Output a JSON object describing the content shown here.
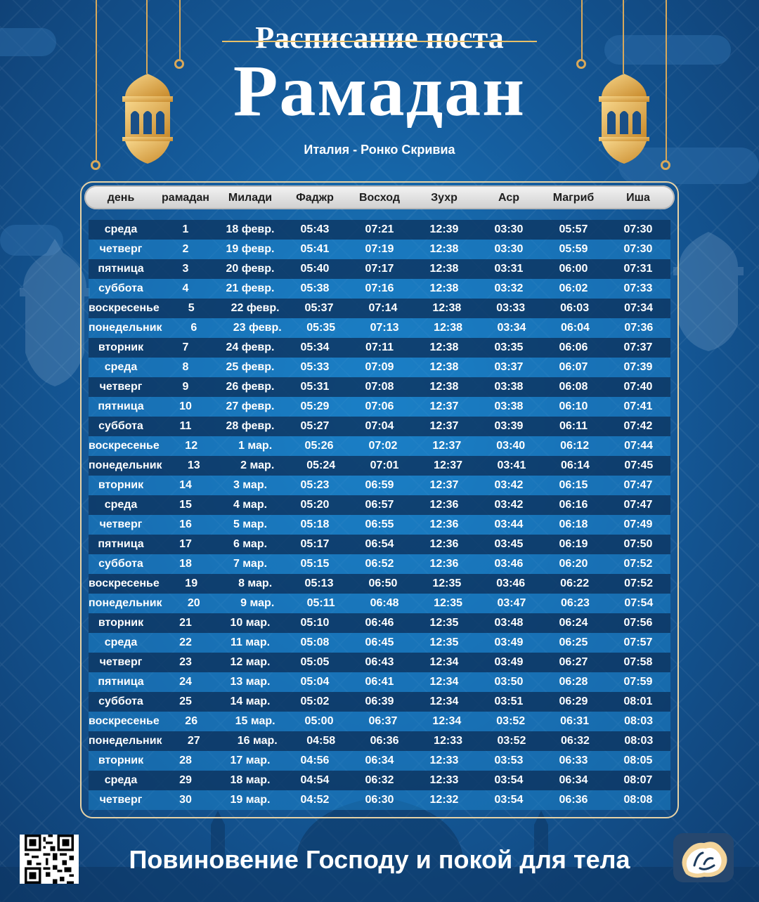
{
  "title_top": "Расписание поста",
  "title_main": "Рамадан",
  "location": "Италия - Ронко Скривиа",
  "columns": [
    "день",
    "рамадан",
    "Милади",
    "Фаджр",
    "Восход",
    "Зухр",
    "Аср",
    "Магриб",
    "Иша"
  ],
  "rows": [
    [
      "среда",
      "1",
      "18 февр.",
      "05:43",
      "07:21",
      "12:39",
      "03:30",
      "05:57",
      "07:30"
    ],
    [
      "четверг",
      "2",
      "19 февр.",
      "05:41",
      "07:19",
      "12:38",
      "03:30",
      "05:59",
      "07:30"
    ],
    [
      "пятница",
      "3",
      "20 февр.",
      "05:40",
      "07:17",
      "12:38",
      "03:31",
      "06:00",
      "07:31"
    ],
    [
      "суббота",
      "4",
      "21 февр.",
      "05:38",
      "07:16",
      "12:38",
      "03:32",
      "06:02",
      "07:33"
    ],
    [
      "воскресенье",
      "5",
      "22 февр.",
      "05:37",
      "07:14",
      "12:38",
      "03:33",
      "06:03",
      "07:34"
    ],
    [
      "понедельник",
      "6",
      "23 февр.",
      "05:35",
      "07:13",
      "12:38",
      "03:34",
      "06:04",
      "07:36"
    ],
    [
      "вторник",
      "7",
      "24 февр.",
      "05:34",
      "07:11",
      "12:38",
      "03:35",
      "06:06",
      "07:37"
    ],
    [
      "среда",
      "8",
      "25 февр.",
      "05:33",
      "07:09",
      "12:38",
      "03:37",
      "06:07",
      "07:39"
    ],
    [
      "четверг",
      "9",
      "26 февр.",
      "05:31",
      "07:08",
      "12:38",
      "03:38",
      "06:08",
      "07:40"
    ],
    [
      "пятница",
      "10",
      "27 февр.",
      "05:29",
      "07:06",
      "12:37",
      "03:38",
      "06:10",
      "07:41"
    ],
    [
      "суббота",
      "11",
      "28 февр.",
      "05:27",
      "07:04",
      "12:37",
      "03:39",
      "06:11",
      "07:42"
    ],
    [
      "воскресенье",
      "12",
      "1 мар.",
      "05:26",
      "07:02",
      "12:37",
      "03:40",
      "06:12",
      "07:44"
    ],
    [
      "понедельник",
      "13",
      "2 мар.",
      "05:24",
      "07:01",
      "12:37",
      "03:41",
      "06:14",
      "07:45"
    ],
    [
      "вторник",
      "14",
      "3 мар.",
      "05:23",
      "06:59",
      "12:37",
      "03:42",
      "06:15",
      "07:47"
    ],
    [
      "среда",
      "15",
      "4 мар.",
      "05:20",
      "06:57",
      "12:36",
      "03:42",
      "06:16",
      "07:47"
    ],
    [
      "четверг",
      "16",
      "5 мар.",
      "05:18",
      "06:55",
      "12:36",
      "03:44",
      "06:18",
      "07:49"
    ],
    [
      "пятница",
      "17",
      "6 мар.",
      "05:17",
      "06:54",
      "12:36",
      "03:45",
      "06:19",
      "07:50"
    ],
    [
      "суббота",
      "18",
      "7 мар.",
      "05:15",
      "06:52",
      "12:36",
      "03:46",
      "06:20",
      "07:52"
    ],
    [
      "воскресенье",
      "19",
      "8 мар.",
      "05:13",
      "06:50",
      "12:35",
      "03:46",
      "06:22",
      "07:52"
    ],
    [
      "понедельник",
      "20",
      "9 мар.",
      "05:11",
      "06:48",
      "12:35",
      "03:47",
      "06:23",
      "07:54"
    ],
    [
      "вторник",
      "21",
      "10 мар.",
      "05:10",
      "06:46",
      "12:35",
      "03:48",
      "06:24",
      "07:56"
    ],
    [
      "среда",
      "22",
      "11 мар.",
      "05:08",
      "06:45",
      "12:35",
      "03:49",
      "06:25",
      "07:57"
    ],
    [
      "четверг",
      "23",
      "12 мар.",
      "05:05",
      "06:43",
      "12:34",
      "03:49",
      "06:27",
      "07:58"
    ],
    [
      "пятница",
      "24",
      "13 мар.",
      "05:04",
      "06:41",
      "12:34",
      "03:50",
      "06:28",
      "07:59"
    ],
    [
      "суббота",
      "25",
      "14 мар.",
      "05:02",
      "06:39",
      "12:34",
      "03:51",
      "06:29",
      "08:01"
    ],
    [
      "воскресенье",
      "26",
      "15 мар.",
      "05:00",
      "06:37",
      "12:34",
      "03:52",
      "06:31",
      "08:03"
    ],
    [
      "понедельник",
      "27",
      "16 мар.",
      "04:58",
      "06:36",
      "12:33",
      "03:52",
      "06:32",
      "08:03"
    ],
    [
      "вторник",
      "28",
      "17 мар.",
      "04:56",
      "06:34",
      "12:33",
      "03:53",
      "06:33",
      "08:05"
    ],
    [
      "среда",
      "29",
      "18 мар.",
      "04:54",
      "06:32",
      "12:33",
      "03:54",
      "06:34",
      "08:07"
    ],
    [
      "четверг",
      "30",
      "19 мар.",
      "04:52",
      "06:30",
      "12:32",
      "03:54",
      "06:36",
      "08:08"
    ]
  ],
  "slogan": "Повиновение Господу и покой для тела",
  "icons": [
    "lantern-icon",
    "qr-code-icon",
    "logo-icon"
  ],
  "colors": {
    "gold": "#e0b060",
    "dark_row": "#0e3a68",
    "light_row": "#1b81c8"
  }
}
